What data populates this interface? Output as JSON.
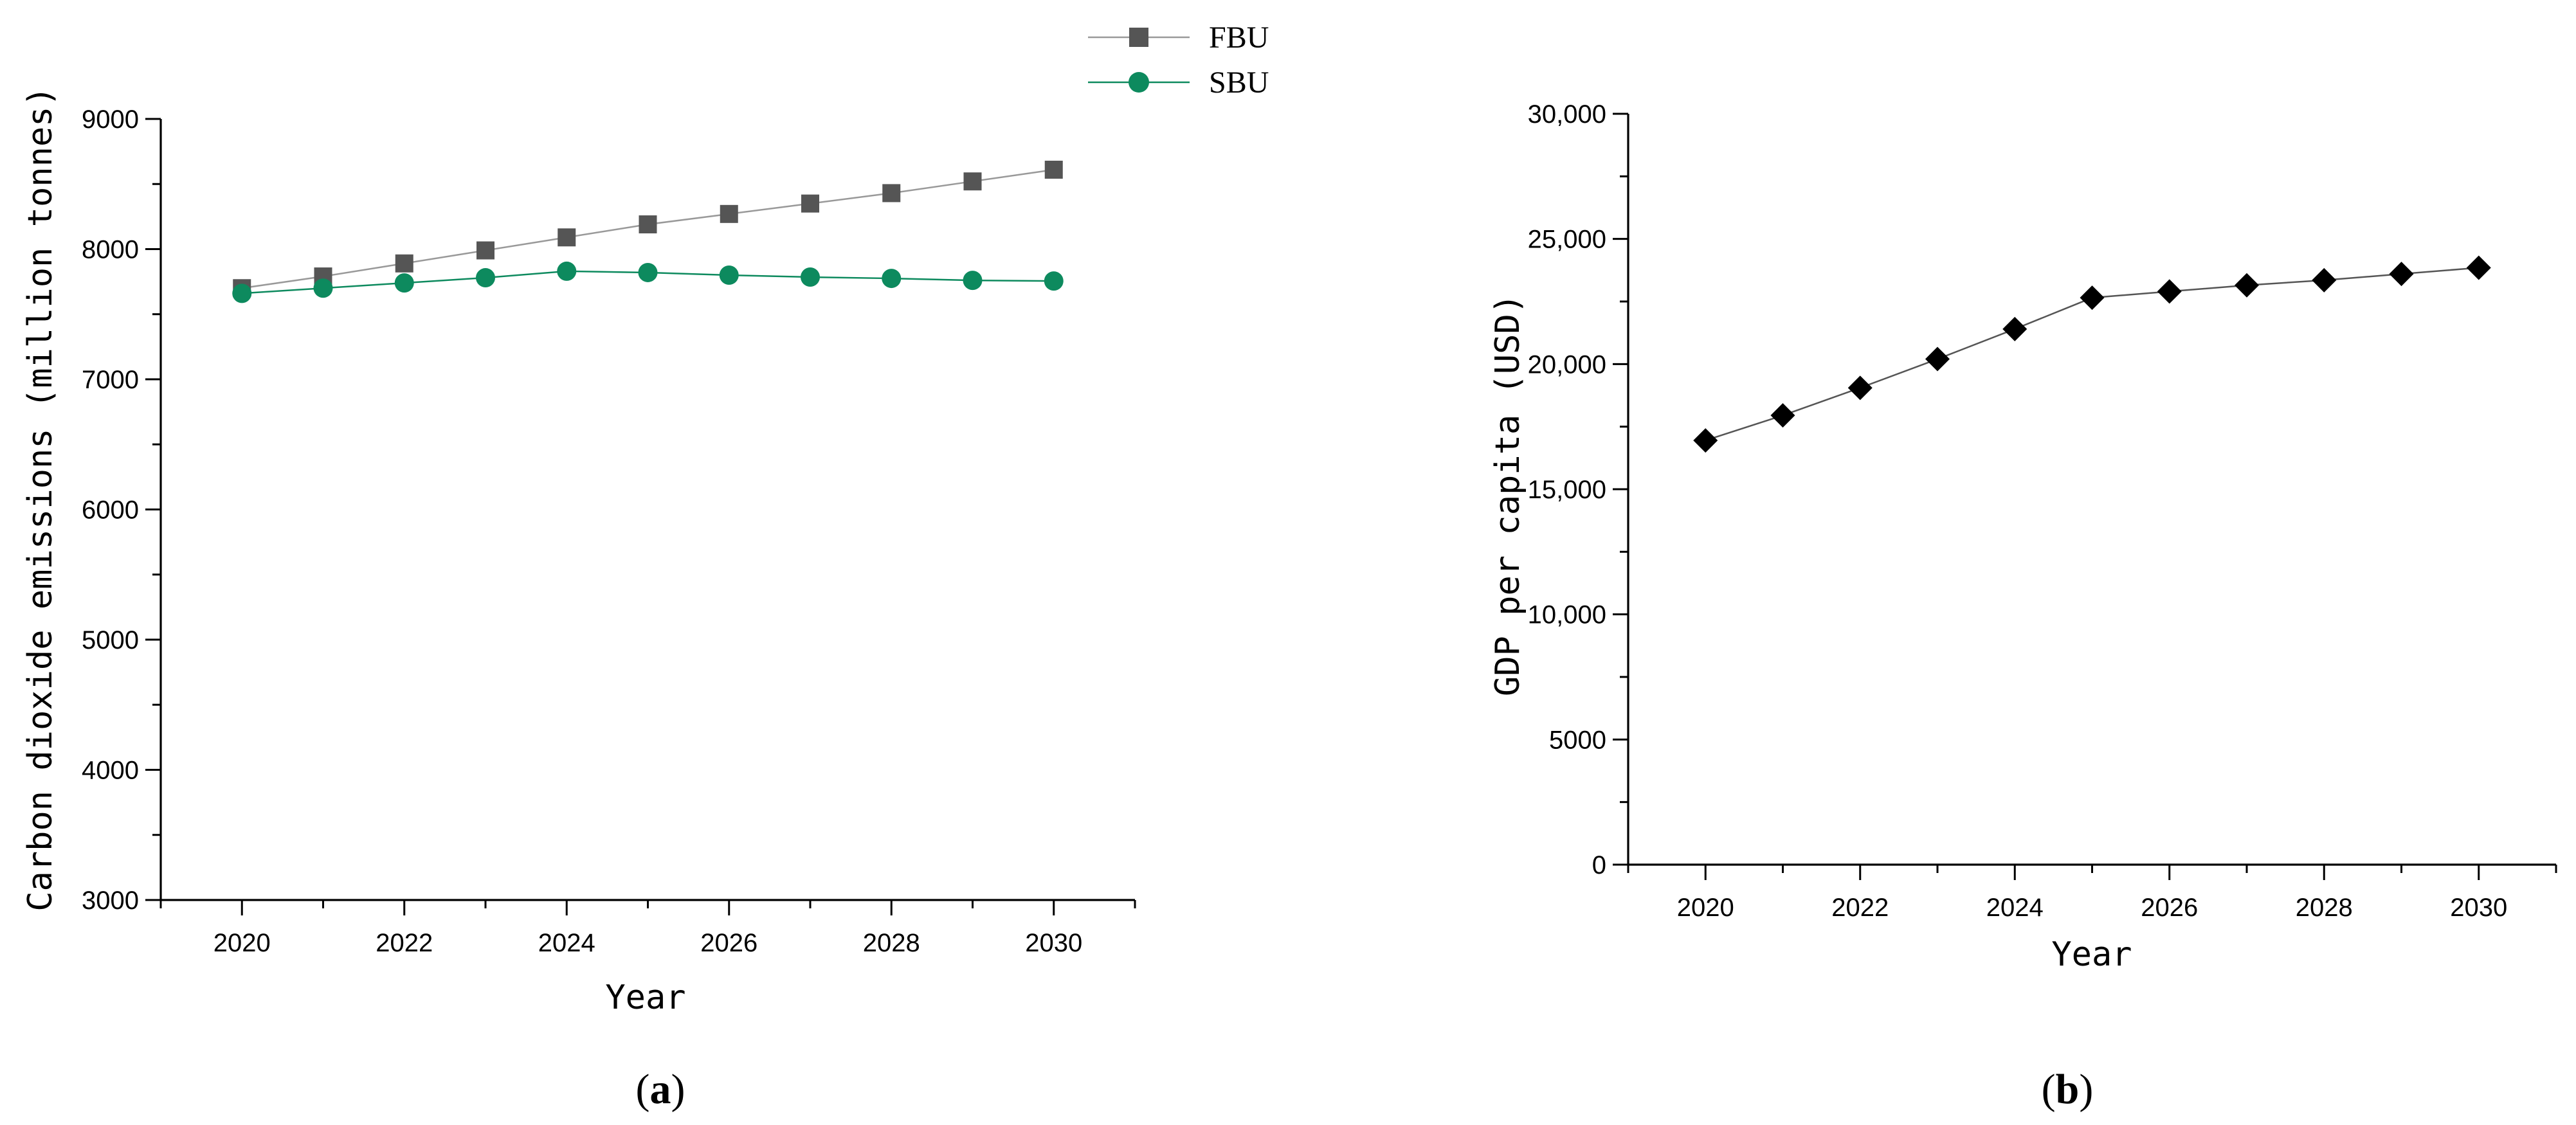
{
  "chart_data": [
    {
      "type": "line",
      "panel_label": "a",
      "title": "",
      "xlabel": "Year",
      "ylabel": "Carbon dioxide emissions (million tonnes)",
      "x": [
        2020,
        2021,
        2022,
        2023,
        2024,
        2025,
        2026,
        2027,
        2028,
        2029,
        2030
      ],
      "xlim": [
        2019,
        2031
      ],
      "ylim": [
        3000,
        9000
      ],
      "xticks": [
        "2020",
        "2022",
        "2024",
        "2026",
        "2028",
        "2030"
      ],
      "yticks": [
        "3000",
        "4000",
        "5000",
        "6000",
        "7000",
        "8000",
        "9000"
      ],
      "grid": false,
      "legend_position": "top",
      "series": [
        {
          "name": "FBU",
          "color": "#555555",
          "marker": "square",
          "values": [
            7700,
            7790,
            7890,
            7990,
            8090,
            8190,
            8270,
            8350,
            8430,
            8520,
            8610
          ]
        },
        {
          "name": "SBU",
          "color": "#0d8a5e",
          "marker": "circle",
          "values": [
            7660,
            7700,
            7740,
            7780,
            7830,
            7820,
            7800,
            7785,
            7775,
            7760,
            7755
          ]
        }
      ]
    },
    {
      "type": "line",
      "panel_label": "b",
      "title": "",
      "xlabel": "Year",
      "ylabel": "GDP per capita (USD)",
      "x": [
        2020,
        2021,
        2022,
        2023,
        2024,
        2025,
        2026,
        2027,
        2028,
        2029,
        2030
      ],
      "xlim": [
        2019,
        2031
      ],
      "ylim": [
        0,
        30000
      ],
      "xticks": [
        "2020",
        "2022",
        "2024",
        "2026",
        "2028",
        "2030"
      ],
      "yticks": [
        "0",
        "5000",
        "10,000",
        "15,000",
        "20,000",
        "25,000",
        "30,000"
      ],
      "grid": false,
      "series": [
        {
          "color": "#000000",
          "marker": "diamond",
          "values": [
            16950,
            17950,
            19050,
            20200,
            21400,
            22650,
            22900,
            23150,
            23350,
            23600,
            23850
          ]
        }
      ]
    }
  ],
  "colors": {
    "axis": "#000000",
    "line_gray": "#999999"
  }
}
